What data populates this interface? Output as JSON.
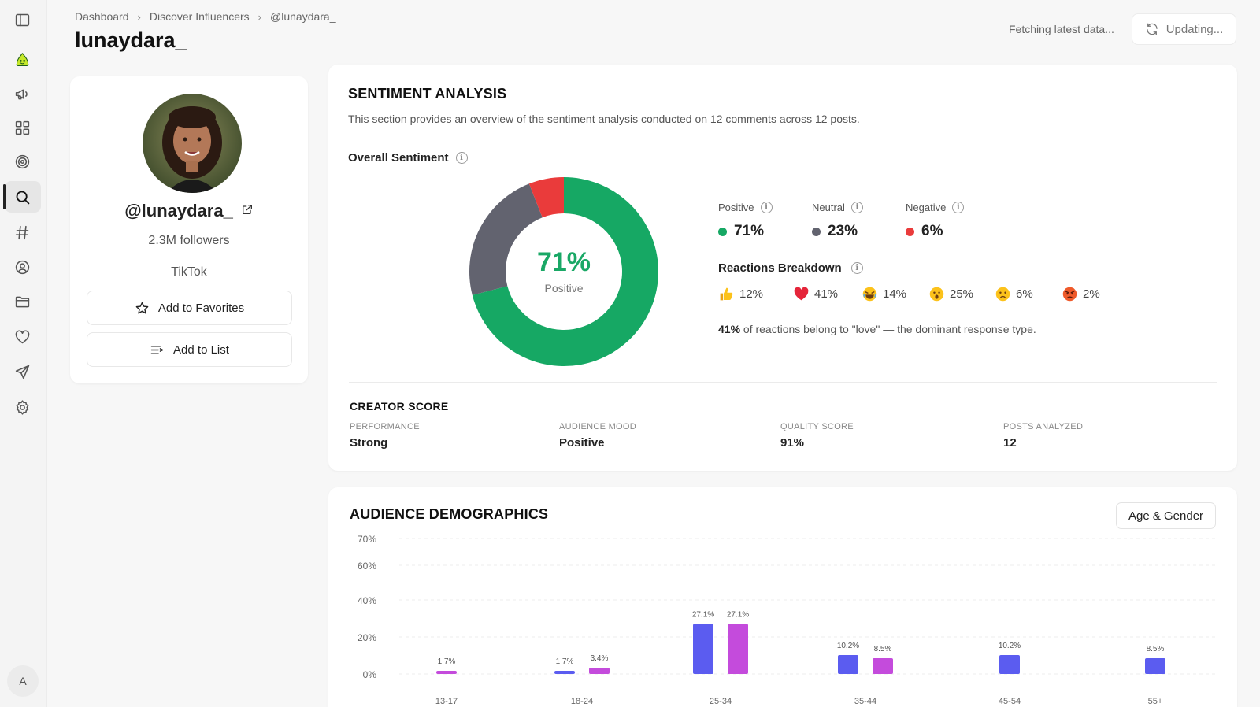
{
  "breadcrumb": {
    "items": [
      "Dashboard",
      "Discover Influencers",
      "@lunaydara_"
    ]
  },
  "page": {
    "title": "lunaydara_"
  },
  "header": {
    "status_text": "Fetching latest data...",
    "update_label": "Updating..."
  },
  "sidebar": {
    "icons": [
      "panel-toggle-icon",
      "brand-logo-icon",
      "megaphone-icon",
      "grid-icon",
      "target-icon",
      "search-icon",
      "hashtag-icon",
      "user-circle-icon",
      "folder-icon",
      "heart-icon",
      "send-icon",
      "settings-icon"
    ],
    "active": "search-icon",
    "avatar_letter": "A"
  },
  "profile": {
    "handle": "@lunaydara_",
    "followers": "2.3M followers",
    "platform": "TikTok",
    "favorites_label": "Add to Favorites",
    "list_label": "Add to List"
  },
  "sentiment": {
    "title": "SENTIMENT ANALYSIS",
    "description": "This section provides an overview of the sentiment analysis conducted on 12 comments across 12 posts.",
    "overall_label": "Overall Sentiment",
    "center_value": "71%",
    "center_label": "Positive",
    "breakdown": [
      {
        "label": "Positive",
        "value": "71%",
        "percent": 71,
        "color": "#16a864"
      },
      {
        "label": "Neutral",
        "value": "23%",
        "percent": 23,
        "color": "#62636f"
      },
      {
        "label": "Negative",
        "value": "6%",
        "percent": 6,
        "color": "#ea3b3b"
      }
    ],
    "reactions_title": "Reactions Breakdown",
    "reactions": [
      {
        "icon": "thumbs-up-icon",
        "value": "12%"
      },
      {
        "icon": "heart-icon",
        "value": "41%"
      },
      {
        "icon": "laughing-face-icon",
        "value": "14%"
      },
      {
        "icon": "surprised-face-icon",
        "value": "25%"
      },
      {
        "icon": "crying-face-icon",
        "value": "6%"
      },
      {
        "icon": "angry-face-icon",
        "value": "2%"
      }
    ],
    "dominant_strong": "41%",
    "dominant_text": " of reactions belong to \"love\" — the dominant response type."
  },
  "creator_score": {
    "title": "CREATOR SCORE",
    "metrics": [
      {
        "label": "PERFORMANCE",
        "value": "Strong"
      },
      {
        "label": "AUDIENCE MOOD",
        "value": "Positive"
      },
      {
        "label": "QUALITY SCORE",
        "value": "91%"
      },
      {
        "label": "POSTS ANALYZED",
        "value": "12"
      }
    ]
  },
  "demographics": {
    "title": "AUDIENCE DEMOGRAPHICS",
    "filter_label": "Age & Gender"
  },
  "chart_data": {
    "type": "bar",
    "categories": [
      "13-17",
      "18-24",
      "25-34",
      "35-44",
      "45-54",
      "55+"
    ],
    "series": [
      {
        "values": [
          0,
          1.7,
          27.1,
          10.2,
          10.2,
          8.5
        ],
        "labels": [
          "",
          "1.7%",
          "27.1%",
          "10.2%",
          "10.2%",
          "8.5%"
        ],
        "color": "#5b5cf0"
      },
      {
        "values": [
          1.7,
          3.4,
          27.1,
          8.5,
          0,
          0
        ],
        "labels": [
          "1.7%",
          "3.4%",
          "27.1%",
          "8.5%",
          "",
          ""
        ],
        "color": "#c44bdc"
      }
    ],
    "yticks": [
      "0%",
      "20%",
      "40%",
      "60%",
      "70%"
    ],
    "ylim": [
      0,
      70
    ],
    "grid": true
  }
}
